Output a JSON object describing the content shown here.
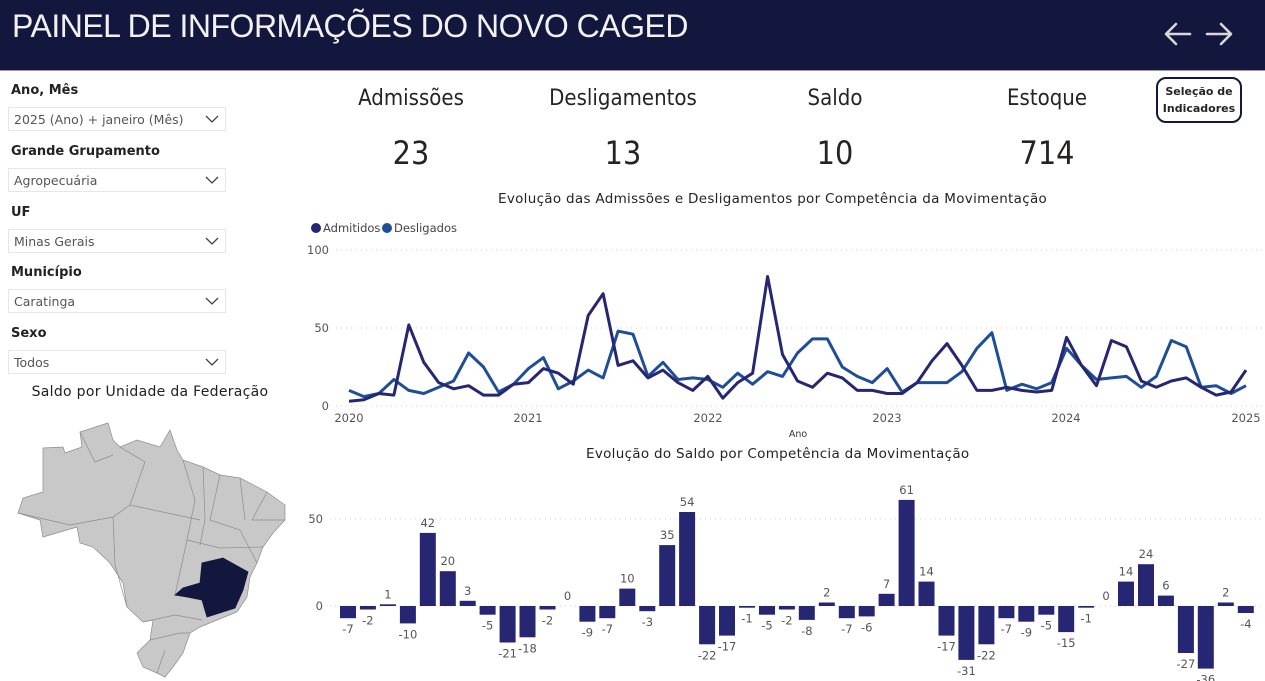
{
  "header": {
    "title": "PAINEL DE INFORMAÇÕES DO NOVO CAGED",
    "back_icon": "arrow-left-icon",
    "forward_icon": "arrow-right-icon"
  },
  "filters": [
    {
      "label": "Ano, Mês",
      "value": "2025 (Ano) + janeiro (Mês)"
    },
    {
      "label": "Grande Grupamento",
      "value": "Agropecuária"
    },
    {
      "label": "UF",
      "value": "Minas Gerais"
    },
    {
      "label": "Município",
      "value": "Caratinga"
    },
    {
      "label": "Sexo",
      "value": "Todos"
    }
  ],
  "map": {
    "title": "Saldo por Unidade da Federação",
    "highlighted_state": "Minas Gerais",
    "highlight_color": "#14173d",
    "base_color": "#c8c8c8"
  },
  "kpis": [
    {
      "label": "Admissões",
      "value": "23"
    },
    {
      "label": "Desligamentos",
      "value": "13"
    },
    {
      "label": "Saldo",
      "value": "10"
    },
    {
      "label": "Estoque",
      "value": "714"
    }
  ],
  "selection_button": {
    "line1": "Seleção de",
    "line2": "Indicadores"
  },
  "chart_data": [
    {
      "type": "line",
      "title": "Evolução das Admissões e Desligamentos por Competência da Movimentação",
      "xlabel": "Ano",
      "ylabel": "",
      "x_ticks": [
        "2020",
        "2021",
        "2022",
        "2023",
        "2024",
        "2025"
      ],
      "y_ticks": [
        "0",
        "50",
        "100"
      ],
      "ylim": [
        0,
        100
      ],
      "grid": true,
      "legend": "top-left",
      "x_start": "2020-01",
      "x_end": "2025-01",
      "series": [
        {
          "name": "Admitidos",
          "color": "#262673",
          "values": [
            3,
            4,
            8,
            7,
            52,
            28,
            15,
            11,
            13,
            7,
            7,
            14,
            15,
            24,
            21,
            14,
            58,
            72,
            26,
            29,
            18,
            23,
            15,
            10,
            19,
            5,
            15,
            21,
            83,
            33,
            16,
            12,
            21,
            18,
            10,
            10,
            8,
            8,
            15,
            29,
            40,
            26,
            10,
            10,
            12,
            10,
            9,
            10,
            44,
            26,
            13,
            42,
            38,
            16,
            12,
            16,
            18,
            12,
            7,
            9,
            23
          ]
        },
        {
          "name": "Desligados",
          "color": "#1f4e96",
          "values": [
            10,
            6,
            8,
            17,
            10,
            8,
            12,
            16,
            34,
            25,
            9,
            14,
            24,
            31,
            11,
            16,
            23,
            18,
            48,
            46,
            19,
            28,
            17,
            18,
            17,
            12,
            21,
            14,
            22,
            19,
            34,
            43,
            43,
            25,
            19,
            15,
            24,
            9,
            15,
            15,
            15,
            22,
            37,
            47,
            10,
            14,
            11,
            15,
            37,
            26,
            17,
            18,
            19,
            12,
            19,
            42,
            38,
            12,
            13,
            8,
            13
          ]
        }
      ]
    },
    {
      "type": "bar",
      "title": "Evolução do Saldo por Competência da Movimentação",
      "y_ticks": [
        "0",
        "50"
      ],
      "ylim": [
        -36,
        61
      ],
      "grid": true,
      "color": "#262673",
      "values": [
        -7,
        -2,
        1,
        -10,
        42,
        20,
        3,
        -5,
        -21,
        -18,
        -2,
        0,
        -9,
        -7,
        10,
        -3,
        35,
        54,
        -22,
        -17,
        -1,
        -5,
        -2,
        -8,
        2,
        -7,
        -6,
        7,
        61,
        14,
        -17,
        -31,
        -22,
        -7,
        -9,
        -5,
        -15,
        -1,
        0,
        14,
        24,
        6,
        -27,
        -36,
        2,
        -4
      ],
      "labels": [
        "-7",
        "-2",
        "1",
        "-10",
        "42",
        "20",
        "3",
        "-5",
        "-21",
        "-18",
        "-2",
        "0",
        "-9",
        "-7",
        "10",
        "-3",
        "35",
        "54",
        "-22",
        "-17",
        "-1",
        "-5",
        "-2",
        "-8",
        "2",
        "-7",
        "-6",
        "7",
        "61",
        "14",
        "-17",
        "-31",
        "-22",
        "-7",
        "-9",
        "-5",
        "-15",
        "-1",
        "0",
        "14",
        "24",
        "6",
        "-27",
        "-36",
        "2",
        "-4"
      ]
    }
  ]
}
